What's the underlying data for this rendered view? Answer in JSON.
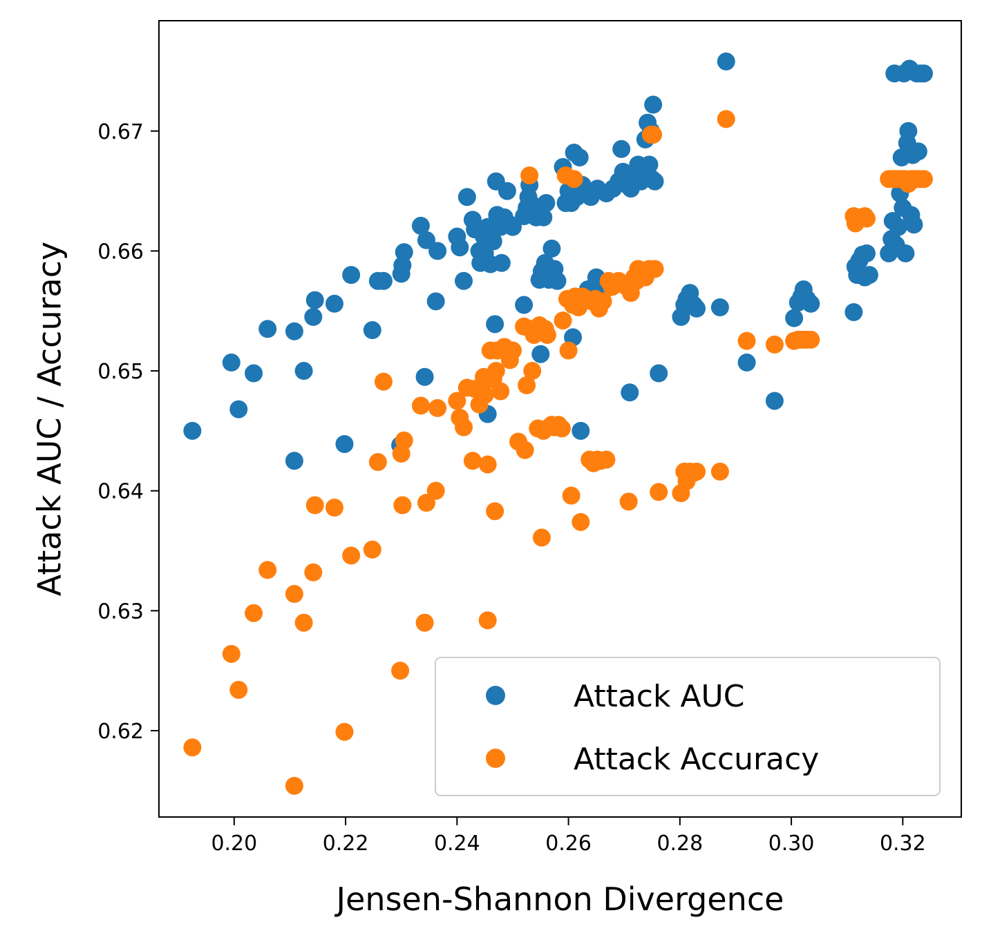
{
  "chart_data": {
    "type": "scatter",
    "title": "",
    "xlabel": "Jensen-Shannon Divergence",
    "ylabel": "Attack AUC / Accuracy",
    "xlim": [
      0.1865,
      0.3305
    ],
    "ylim": [
      0.6128,
      0.6792
    ],
    "xticks": [
      0.2,
      0.22,
      0.24,
      0.26,
      0.28,
      0.3,
      0.32
    ],
    "xtick_labels": [
      "0.20",
      "0.22",
      "0.24",
      "0.26",
      "0.28",
      "0.30",
      "0.32"
    ],
    "yticks": [
      0.62,
      0.63,
      0.64,
      0.65,
      0.66,
      0.67
    ],
    "ytick_labels": [
      "0.62",
      "0.63",
      "0.64",
      "0.65",
      "0.66",
      "0.67"
    ],
    "grid": false,
    "legend": {
      "position": "lower right",
      "entries": [
        "Attack AUC",
        "Attack Accuracy"
      ]
    },
    "series": [
      {
        "name": "Attack AUC",
        "color": "#1f77b4",
        "points": [
          [
            0.1925,
            0.645
          ],
          [
            0.1995,
            0.6507
          ],
          [
            0.2008,
            0.6468
          ],
          [
            0.2035,
            0.6498
          ],
          [
            0.206,
            0.6535
          ],
          [
            0.2108,
            0.6533
          ],
          [
            0.2108,
            0.6425
          ],
          [
            0.2125,
            0.65
          ],
          [
            0.2142,
            0.6545
          ],
          [
            0.2145,
            0.6559
          ],
          [
            0.218,
            0.6556
          ],
          [
            0.2198,
            0.6439
          ],
          [
            0.221,
            0.658
          ],
          [
            0.2248,
            0.6534
          ],
          [
            0.2258,
            0.6575
          ],
          [
            0.2268,
            0.6575
          ],
          [
            0.2298,
            0.6438
          ],
          [
            0.23,
            0.6581
          ],
          [
            0.2302,
            0.6588
          ],
          [
            0.2305,
            0.6599
          ],
          [
            0.2335,
            0.6621
          ],
          [
            0.2342,
            0.6495
          ],
          [
            0.2345,
            0.6609
          ],
          [
            0.2362,
            0.6558
          ],
          [
            0.2365,
            0.66
          ],
          [
            0.24,
            0.6612
          ],
          [
            0.2405,
            0.6603
          ],
          [
            0.2412,
            0.6575
          ],
          [
            0.2418,
            0.6645
          ],
          [
            0.2428,
            0.6626
          ],
          [
            0.2432,
            0.6618
          ],
          [
            0.244,
            0.66
          ],
          [
            0.2442,
            0.659
          ],
          [
            0.2448,
            0.6612
          ],
          [
            0.245,
            0.6598
          ],
          [
            0.2455,
            0.662
          ],
          [
            0.2455,
            0.6464
          ],
          [
            0.246,
            0.6589
          ],
          [
            0.2465,
            0.6608
          ],
          [
            0.2468,
            0.6539
          ],
          [
            0.247,
            0.6658
          ],
          [
            0.2472,
            0.663
          ],
          [
            0.2478,
            0.662
          ],
          [
            0.248,
            0.659
          ],
          [
            0.2485,
            0.6628
          ],
          [
            0.249,
            0.665
          ],
          [
            0.2495,
            0.6622
          ],
          [
            0.25,
            0.662
          ],
          [
            0.252,
            0.6555
          ],
          [
            0.252,
            0.6629
          ],
          [
            0.2525,
            0.6636
          ],
          [
            0.2528,
            0.6645
          ],
          [
            0.253,
            0.6655
          ],
          [
            0.2532,
            0.664
          ],
          [
            0.2535,
            0.663
          ],
          [
            0.254,
            0.6635
          ],
          [
            0.2542,
            0.6628
          ],
          [
            0.2548,
            0.6576
          ],
          [
            0.255,
            0.6514
          ],
          [
            0.2552,
            0.6583
          ],
          [
            0.2555,
            0.6628
          ],
          [
            0.2558,
            0.659
          ],
          [
            0.256,
            0.664
          ],
          [
            0.2565,
            0.6576
          ],
          [
            0.257,
            0.6602
          ],
          [
            0.2575,
            0.6585
          ],
          [
            0.258,
            0.6575
          ],
          [
            0.259,
            0.667
          ],
          [
            0.2595,
            0.664
          ],
          [
            0.26,
            0.665
          ],
          [
            0.2605,
            0.664
          ],
          [
            0.2608,
            0.6528
          ],
          [
            0.261,
            0.6682
          ],
          [
            0.2615,
            0.6645
          ],
          [
            0.262,
            0.6678
          ],
          [
            0.2622,
            0.645
          ],
          [
            0.2625,
            0.6655
          ],
          [
            0.2635,
            0.6568
          ],
          [
            0.264,
            0.6645
          ],
          [
            0.2645,
            0.657
          ],
          [
            0.265,
            0.6578
          ],
          [
            0.2652,
            0.6652
          ],
          [
            0.2662,
            0.6566
          ],
          [
            0.2668,
            0.6648
          ],
          [
            0.268,
            0.6652
          ],
          [
            0.269,
            0.6658
          ],
          [
            0.2695,
            0.6685
          ],
          [
            0.2698,
            0.6666
          ],
          [
            0.27,
            0.666
          ],
          [
            0.2705,
            0.6655
          ],
          [
            0.2708,
            0.6663
          ],
          [
            0.271,
            0.6482
          ],
          [
            0.2712,
            0.6652
          ],
          [
            0.2718,
            0.666
          ],
          [
            0.2725,
            0.6672
          ],
          [
            0.273,
            0.6658
          ],
          [
            0.2732,
            0.6665
          ],
          [
            0.2738,
            0.6693
          ],
          [
            0.2742,
            0.6707
          ],
          [
            0.2745,
            0.6672
          ],
          [
            0.2748,
            0.67
          ],
          [
            0.275,
            0.666
          ],
          [
            0.2752,
            0.6722
          ],
          [
            0.2755,
            0.6658
          ],
          [
            0.2762,
            0.6498
          ],
          [
            0.2802,
            0.6545
          ],
          [
            0.2808,
            0.6555
          ],
          [
            0.2812,
            0.656
          ],
          [
            0.2818,
            0.6565
          ],
          [
            0.2825,
            0.6555
          ],
          [
            0.283,
            0.6552
          ],
          [
            0.2872,
            0.6553
          ],
          [
            0.2883,
            0.6758
          ],
          [
            0.292,
            0.6507
          ],
          [
            0.297,
            0.6475
          ],
          [
            0.3005,
            0.6544
          ],
          [
            0.3012,
            0.6557
          ],
          [
            0.3018,
            0.6562
          ],
          [
            0.3022,
            0.6568
          ],
          [
            0.3028,
            0.656
          ],
          [
            0.3035,
            0.6556
          ],
          [
            0.3112,
            0.6549
          ],
          [
            0.3115,
            0.6587
          ],
          [
            0.3118,
            0.658
          ],
          [
            0.3122,
            0.6592
          ],
          [
            0.3128,
            0.6597
          ],
          [
            0.3132,
            0.6578
          ],
          [
            0.3135,
            0.6598
          ],
          [
            0.314,
            0.658
          ],
          [
            0.3175,
            0.6598
          ],
          [
            0.318,
            0.661
          ],
          [
            0.3182,
            0.6625
          ],
          [
            0.3185,
            0.6748
          ],
          [
            0.3188,
            0.6605
          ],
          [
            0.3192,
            0.662
          ],
          [
            0.3195,
            0.6648
          ],
          [
            0.3198,
            0.6678
          ],
          [
            0.32,
            0.6636
          ],
          [
            0.3202,
            0.6748
          ],
          [
            0.3205,
            0.6598
          ],
          [
            0.3208,
            0.669
          ],
          [
            0.321,
            0.67
          ],
          [
            0.3212,
            0.6752
          ],
          [
            0.3215,
            0.663
          ],
          [
            0.3218,
            0.668
          ],
          [
            0.322,
            0.6622
          ],
          [
            0.3225,
            0.6748
          ],
          [
            0.3228,
            0.6683
          ],
          [
            0.3232,
            0.6748
          ],
          [
            0.3238,
            0.6748
          ]
        ]
      },
      {
        "name": "Attack Accuracy",
        "color": "#ff7f0e",
        "points": [
          [
            0.1925,
            0.6186
          ],
          [
            0.1995,
            0.6264
          ],
          [
            0.2008,
            0.6234
          ],
          [
            0.2035,
            0.6298
          ],
          [
            0.206,
            0.6334
          ],
          [
            0.2108,
            0.6314
          ],
          [
            0.2108,
            0.6154
          ],
          [
            0.2125,
            0.629
          ],
          [
            0.2142,
            0.6332
          ],
          [
            0.2145,
            0.6388
          ],
          [
            0.218,
            0.6386
          ],
          [
            0.2198,
            0.6199
          ],
          [
            0.221,
            0.6346
          ],
          [
            0.2248,
            0.6351
          ],
          [
            0.2258,
            0.6424
          ],
          [
            0.2268,
            0.6491
          ],
          [
            0.2298,
            0.625
          ],
          [
            0.23,
            0.6431
          ],
          [
            0.2302,
            0.6388
          ],
          [
            0.2305,
            0.6442
          ],
          [
            0.2335,
            0.6471
          ],
          [
            0.2342,
            0.629
          ],
          [
            0.2345,
            0.639
          ],
          [
            0.2362,
            0.64
          ],
          [
            0.2365,
            0.6469
          ],
          [
            0.24,
            0.6475
          ],
          [
            0.2405,
            0.6461
          ],
          [
            0.2412,
            0.6453
          ],
          [
            0.2418,
            0.6486
          ],
          [
            0.2428,
            0.6425
          ],
          [
            0.2432,
            0.6485
          ],
          [
            0.244,
            0.6472
          ],
          [
            0.2442,
            0.6485
          ],
          [
            0.2448,
            0.6495
          ],
          [
            0.245,
            0.648
          ],
          [
            0.2455,
            0.6292
          ],
          [
            0.2455,
            0.6422
          ],
          [
            0.246,
            0.6517
          ],
          [
            0.2465,
            0.6493
          ],
          [
            0.2468,
            0.6383
          ],
          [
            0.247,
            0.65
          ],
          [
            0.2472,
            0.6517
          ],
          [
            0.2478,
            0.6483
          ],
          [
            0.2485,
            0.652
          ],
          [
            0.249,
            0.6515
          ],
          [
            0.2495,
            0.6509
          ],
          [
            0.25,
            0.6517
          ],
          [
            0.251,
            0.6441
          ],
          [
            0.252,
            0.6537
          ],
          [
            0.2522,
            0.6434
          ],
          [
            0.2525,
            0.6488
          ],
          [
            0.253,
            0.6663
          ],
          [
            0.2532,
            0.6535
          ],
          [
            0.2535,
            0.65
          ],
          [
            0.2538,
            0.653
          ],
          [
            0.2545,
            0.6452
          ],
          [
            0.2548,
            0.6538
          ],
          [
            0.2552,
            0.6361
          ],
          [
            0.2555,
            0.645
          ],
          [
            0.2558,
            0.6535
          ],
          [
            0.2562,
            0.653
          ],
          [
            0.2565,
            0.6453
          ],
          [
            0.257,
            0.6455
          ],
          [
            0.2575,
            0.6453
          ],
          [
            0.2582,
            0.6455
          ],
          [
            0.2588,
            0.6452
          ],
          [
            0.259,
            0.6542
          ],
          [
            0.2595,
            0.6663
          ],
          [
            0.2598,
            0.656
          ],
          [
            0.26,
            0.6517
          ],
          [
            0.2605,
            0.6396
          ],
          [
            0.2608,
            0.6555
          ],
          [
            0.261,
            0.666
          ],
          [
            0.2612,
            0.6562
          ],
          [
            0.2618,
            0.6553
          ],
          [
            0.2622,
            0.6374
          ],
          [
            0.2625,
            0.6562
          ],
          [
            0.2632,
            0.656
          ],
          [
            0.2638,
            0.6426
          ],
          [
            0.2642,
            0.6558
          ],
          [
            0.2645,
            0.6423
          ],
          [
            0.2648,
            0.656
          ],
          [
            0.2652,
            0.6426
          ],
          [
            0.2655,
            0.6552
          ],
          [
            0.2658,
            0.6425
          ],
          [
            0.2662,
            0.6558
          ],
          [
            0.2668,
            0.6426
          ],
          [
            0.2672,
            0.6575
          ],
          [
            0.2678,
            0.657
          ],
          [
            0.2685,
            0.6572
          ],
          [
            0.269,
            0.6575
          ],
          [
            0.2698,
            0.6573
          ],
          [
            0.2705,
            0.657
          ],
          [
            0.2708,
            0.6391
          ],
          [
            0.2712,
            0.6565
          ],
          [
            0.2718,
            0.6578
          ],
          [
            0.2722,
            0.6575
          ],
          [
            0.2725,
            0.6585
          ],
          [
            0.273,
            0.6582
          ],
          [
            0.2738,
            0.6578
          ],
          [
            0.2745,
            0.6585
          ],
          [
            0.2748,
            0.6697
          ],
          [
            0.2752,
            0.6697
          ],
          [
            0.2755,
            0.6585
          ],
          [
            0.2762,
            0.6399
          ],
          [
            0.2802,
            0.6398
          ],
          [
            0.2808,
            0.6416
          ],
          [
            0.2812,
            0.6408
          ],
          [
            0.2818,
            0.6416
          ],
          [
            0.2825,
            0.6415
          ],
          [
            0.283,
            0.6416
          ],
          [
            0.2872,
            0.6416
          ],
          [
            0.2883,
            0.671
          ],
          [
            0.292,
            0.6525
          ],
          [
            0.297,
            0.6522
          ],
          [
            0.3005,
            0.6525
          ],
          [
            0.3012,
            0.6526
          ],
          [
            0.3018,
            0.6526
          ],
          [
            0.3022,
            0.6526
          ],
          [
            0.3028,
            0.6526
          ],
          [
            0.3035,
            0.6526
          ],
          [
            0.3112,
            0.6629
          ],
          [
            0.3115,
            0.6623
          ],
          [
            0.3118,
            0.6627
          ],
          [
            0.3122,
            0.6628
          ],
          [
            0.3128,
            0.6628
          ],
          [
            0.3132,
            0.6629
          ],
          [
            0.3135,
            0.6627
          ],
          [
            0.3175,
            0.666
          ],
          [
            0.318,
            0.666
          ],
          [
            0.3185,
            0.666
          ],
          [
            0.319,
            0.666
          ],
          [
            0.3195,
            0.666
          ],
          [
            0.32,
            0.666
          ],
          [
            0.3205,
            0.666
          ],
          [
            0.321,
            0.6656
          ],
          [
            0.3215,
            0.666
          ],
          [
            0.322,
            0.666
          ],
          [
            0.3225,
            0.666
          ],
          [
            0.323,
            0.666
          ],
          [
            0.3238,
            0.666
          ]
        ]
      }
    ]
  }
}
